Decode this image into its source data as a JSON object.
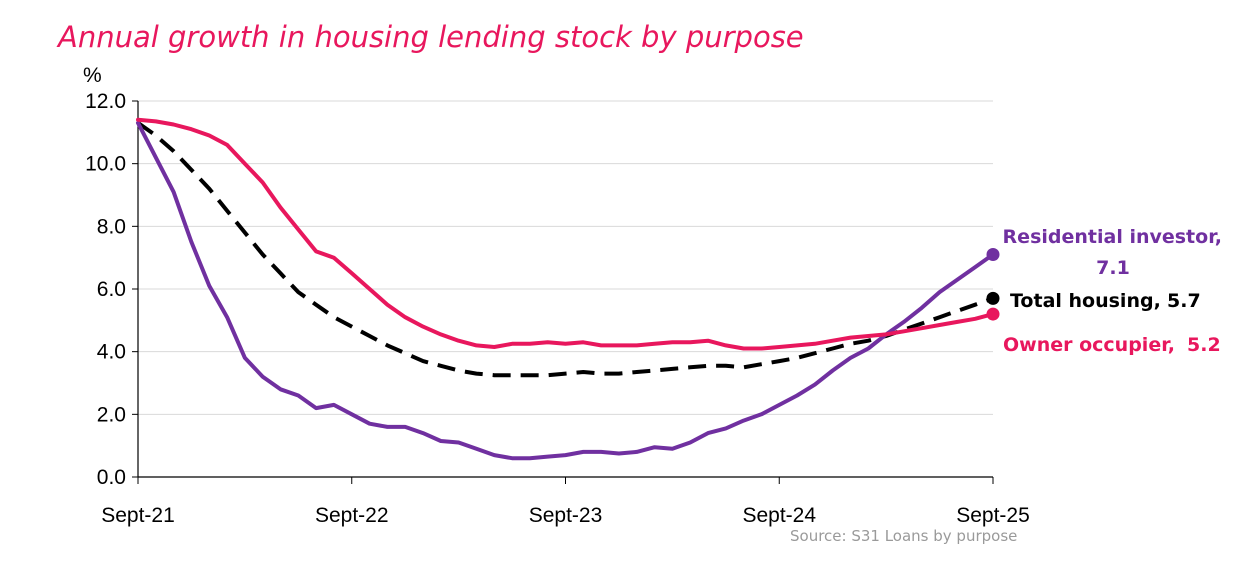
{
  "chart_data": {
    "type": "line",
    "title": "Annual growth in housing lending stock by purpose",
    "ylabel": "%",
    "xlabel": "",
    "ylim": [
      0,
      12
    ],
    "yticks": [
      "0.0",
      "2.0",
      "4.0",
      "6.0",
      "8.0",
      "10.0",
      "12.0"
    ],
    "xticks": [
      "Sept-21",
      "Sept-22",
      "Sept-23",
      "Sept-24",
      "Sept-25"
    ],
    "x_months": 49,
    "grid": true,
    "legend": "end-labels",
    "source": "Source: S31 Loans by purpose",
    "series": [
      {
        "name": "Residential investor",
        "end_label": "Residential investor,",
        "end_value": "7.1",
        "color": "#7030a0",
        "dash": false,
        "values": [
          11.3,
          10.2,
          9.1,
          7.5,
          6.1,
          5.1,
          3.8,
          3.2,
          2.8,
          2.6,
          2.2,
          2.3,
          2.0,
          1.7,
          1.6,
          1.6,
          1.4,
          1.15,
          1.1,
          0.9,
          0.7,
          0.6,
          0.6,
          0.65,
          0.7,
          0.8,
          0.8,
          0.75,
          0.8,
          0.95,
          0.9,
          1.1,
          1.4,
          1.55,
          1.8,
          2.0,
          2.3,
          2.6,
          2.95,
          3.4,
          3.8,
          4.1,
          4.55,
          4.95,
          5.4,
          5.9,
          6.3,
          6.7,
          7.1
        ]
      },
      {
        "name": "Total housing",
        "end_label": "Total housing,",
        "end_value": "5.7",
        "color": "#000000",
        "dash": true,
        "values": [
          11.3,
          10.9,
          10.4,
          9.8,
          9.2,
          8.5,
          7.8,
          7.1,
          6.5,
          5.9,
          5.5,
          5.1,
          4.8,
          4.5,
          4.2,
          3.95,
          3.7,
          3.55,
          3.4,
          3.3,
          3.25,
          3.25,
          3.25,
          3.25,
          3.3,
          3.35,
          3.3,
          3.3,
          3.35,
          3.4,
          3.45,
          3.5,
          3.55,
          3.55,
          3.5,
          3.6,
          3.7,
          3.8,
          3.95,
          4.1,
          4.25,
          4.35,
          4.5,
          4.7,
          4.9,
          5.1,
          5.3,
          5.5,
          5.7
        ]
      },
      {
        "name": "Owner occupier",
        "end_label": "Owner occupier,",
        "end_value": "5.2",
        "color": "#e8175d",
        "dash": false,
        "values": [
          11.4,
          11.35,
          11.25,
          11.1,
          10.9,
          10.6,
          10.0,
          9.4,
          8.6,
          7.9,
          7.2,
          7.0,
          6.5,
          6.0,
          5.5,
          5.1,
          4.8,
          4.55,
          4.35,
          4.2,
          4.15,
          4.25,
          4.25,
          4.3,
          4.25,
          4.3,
          4.2,
          4.2,
          4.2,
          4.25,
          4.3,
          4.3,
          4.35,
          4.2,
          4.1,
          4.1,
          4.15,
          4.2,
          4.25,
          4.35,
          4.45,
          4.5,
          4.55,
          4.65,
          4.75,
          4.85,
          4.95,
          5.05,
          5.2
        ]
      }
    ]
  }
}
